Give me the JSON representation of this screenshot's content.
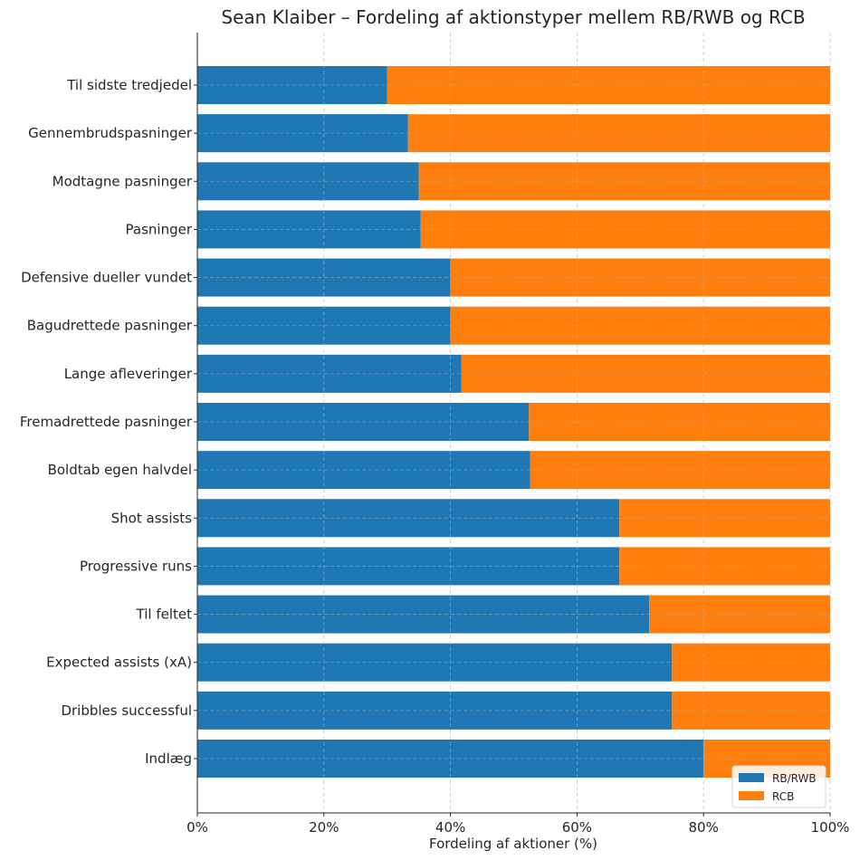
{
  "chart_data": {
    "type": "bar",
    "orientation": "horizontal",
    "stacked": true,
    "title": "Sean Klaiber – Fordeling af aktionstyper mellem RB/RWB og RCB",
    "xlabel": "Fordeling af aktioner (%)",
    "ylabel": "",
    "xlim": [
      0,
      100
    ],
    "x_ticks": [
      "0%",
      "20%",
      "40%",
      "60%",
      "80%",
      "100%"
    ],
    "grid": true,
    "legend_position": "bottom-right",
    "categories": [
      "Indlæg",
      "Dribbles successful",
      "Expected assists (xA)",
      "Til feltet",
      "Progressive runs",
      "Shot assists",
      "Boldtab egen halvdel",
      "Fremadrettede pasninger",
      "Lange afleveringer",
      "Bagudrettede pasninger",
      "Defensive dueller vundet",
      "Pasninger",
      "Modtagne pasninger",
      "Gennembrudspasninger",
      "Til sidste tredjedel"
    ],
    "series": [
      {
        "name": "RB/RWB",
        "color": "#1f77b4",
        "values": [
          80.0,
          75.0,
          75.0,
          71.4,
          66.7,
          66.7,
          52.6,
          52.4,
          41.7,
          40.0,
          40.0,
          35.3,
          35.0,
          33.3,
          30.0
        ]
      },
      {
        "name": "RCB",
        "color": "#ff7f0e",
        "values": [
          20.0,
          25.0,
          25.0,
          28.6,
          33.3,
          33.3,
          47.4,
          47.6,
          58.3,
          60.0,
          60.0,
          64.7,
          65.0,
          66.7,
          70.0
        ]
      }
    ]
  }
}
